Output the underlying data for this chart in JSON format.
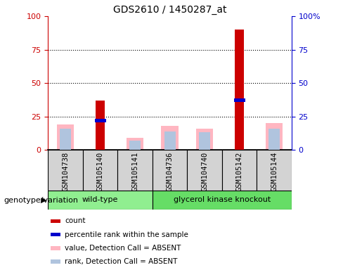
{
  "title": "GDS2610 / 1450287_at",
  "samples": [
    "GSM104738",
    "GSM105140",
    "GSM105141",
    "GSM104736",
    "GSM104740",
    "GSM105142",
    "GSM105144"
  ],
  "count_values": [
    0,
    37,
    0,
    0,
    0,
    90,
    0
  ],
  "percentile_rank_values": [
    0,
    22,
    0,
    0,
    0,
    37,
    0
  ],
  "absent_value_values": [
    19,
    0,
    9,
    18,
    16,
    0,
    20
  ],
  "absent_rank_values": [
    16,
    0,
    7,
    14,
    13,
    0,
    16
  ],
  "left_axis_color": "#cc0000",
  "right_axis_color": "#0000cc",
  "ylim": [
    0,
    100
  ],
  "yticks": [
    0,
    25,
    50,
    75,
    100
  ],
  "right_yticklabels": [
    "0",
    "25",
    "50",
    "75",
    "100%"
  ],
  "bar_width": 0.5,
  "sample_bg_color": "#d3d3d3",
  "wt_color": "#90ee90",
  "gk_color": "#66dd66",
  "legend_items": [
    {
      "label": "count",
      "color": "#cc0000"
    },
    {
      "label": "percentile rank within the sample",
      "color": "#0000cc"
    },
    {
      "label": "value, Detection Call = ABSENT",
      "color": "#ffb6c1"
    },
    {
      "label": "rank, Detection Call = ABSENT",
      "color": "#b0c4de"
    }
  ],
  "wt_group_label": "wild-type",
  "gk_group_label": "glycerol kinase knockout",
  "wt_indices": [
    0,
    1,
    2
  ],
  "gk_indices": [
    3,
    4,
    5,
    6
  ],
  "genotype_label": "genotype/variation"
}
